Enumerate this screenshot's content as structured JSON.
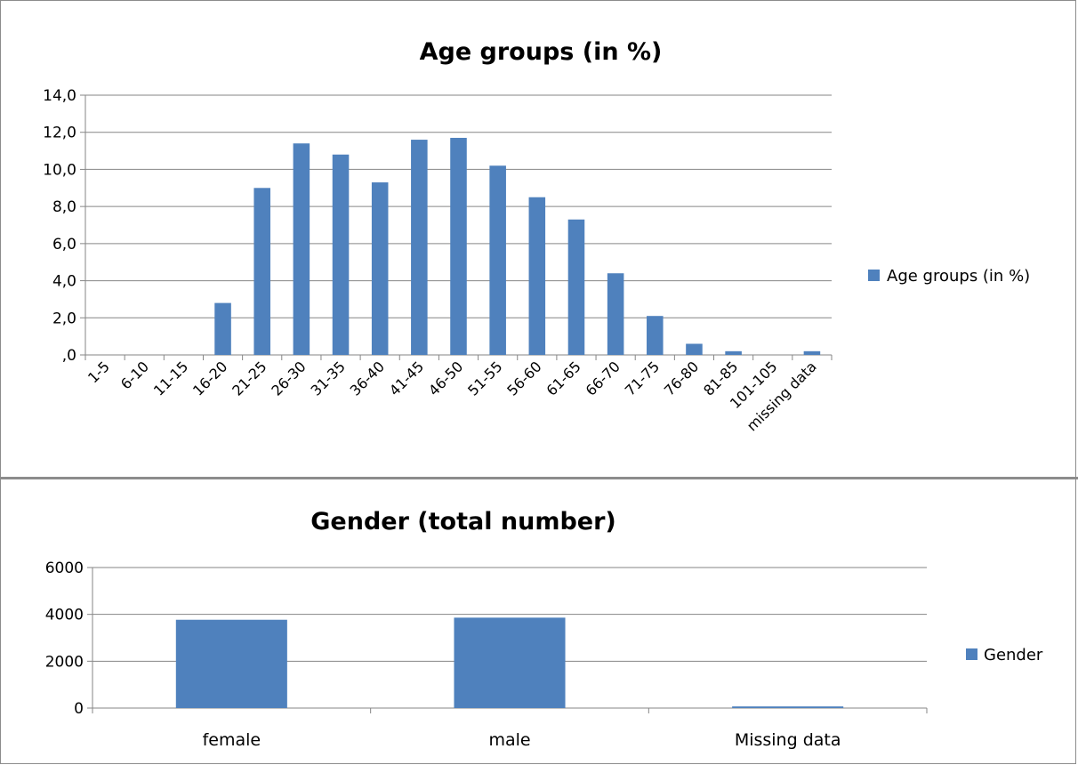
{
  "colors": {
    "bar": "#4f81bd",
    "grid": "#868686",
    "axis": "#868686"
  },
  "chart_data": [
    {
      "type": "bar",
      "title": "Age groups (in %)",
      "categories": [
        "1-5",
        "6-10",
        "11-15",
        "16-20",
        "21-25",
        "26-30",
        "31-35",
        "36-40",
        "41-45",
        "46-50",
        "51-55",
        "56-60",
        "61-65",
        "66-70",
        "71-75",
        "76-80",
        "81-85",
        "101-105",
        "missing data"
      ],
      "series": [
        {
          "name": "Age groups (in %)",
          "values": [
            0.0,
            0.0,
            0.0,
            2.8,
            9.0,
            11.4,
            10.8,
            9.3,
            11.6,
            11.7,
            10.2,
            8.5,
            7.3,
            4.4,
            2.1,
            0.6,
            0.2,
            0.0,
            0.2
          ]
        }
      ],
      "ylim": [
        0,
        14
      ],
      "yticks": [
        "14,0",
        "12,0",
        "10,0",
        "8,0",
        "6,0",
        "4,0",
        "2,0",
        ",0"
      ],
      "xlabel": "",
      "ylabel": "",
      "grid": true,
      "legend": "right"
    },
    {
      "type": "bar",
      "title": "Gender (total number)",
      "categories": [
        "female",
        "male",
        "Missing data"
      ],
      "series": [
        {
          "name": "Gender",
          "values": [
            3770,
            3860,
            70
          ]
        }
      ],
      "ylim": [
        0,
        6000
      ],
      "yticks": [
        "6000",
        "4000",
        "2000",
        "0"
      ],
      "xlabel": "",
      "ylabel": "",
      "grid": true,
      "legend": "right"
    }
  ]
}
